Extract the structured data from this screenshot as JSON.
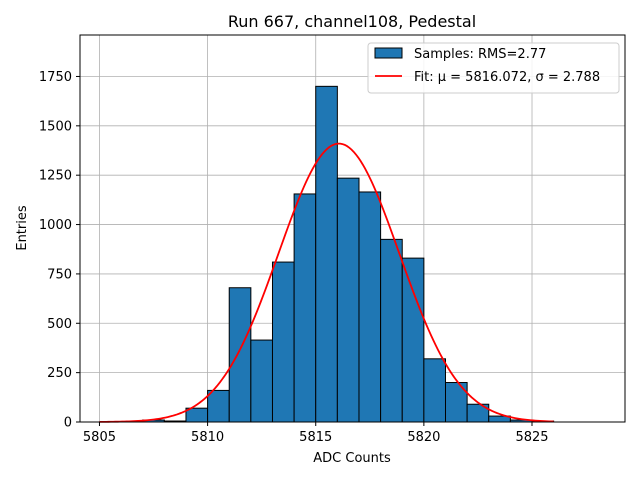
{
  "chart_data": {
    "type": "bar",
    "title": "Run 667, channel108, Pedestal",
    "xlabel": "ADC Counts",
    "ylabel": "Entries",
    "xlim": [
      5804.1,
      5829.3
    ],
    "ylim": [
      0,
      1960
    ],
    "xticks": [
      5805,
      5810,
      5815,
      5820,
      5825
    ],
    "yticks": [
      0,
      250,
      500,
      750,
      1000,
      1250,
      1500,
      1750
    ],
    "grid": true,
    "legend_position": "top-right",
    "bar_color": "#1f77b4",
    "fit_color": "#ff0000",
    "histogram": {
      "name": "Samples: RMS=2.77",
      "bins": [
        5807,
        5808,
        5809,
        5810,
        5811,
        5812,
        5813,
        5814,
        5815,
        5816,
        5817,
        5818,
        5819,
        5820,
        5821,
        5822,
        5823,
        5824,
        5825
      ],
      "bin_width": 1,
      "values": [
        10,
        5,
        70,
        160,
        680,
        415,
        810,
        1155,
        1700,
        1235,
        1165,
        925,
        830,
        320,
        200,
        90,
        30,
        10,
        5
      ]
    },
    "fit": {
      "name": "Fit: μ = 5816.072, σ = 2.788",
      "mu": 5816.072,
      "sigma": 2.788,
      "amplitude": 1410,
      "x_range": [
        5805,
        5826
      ]
    }
  }
}
